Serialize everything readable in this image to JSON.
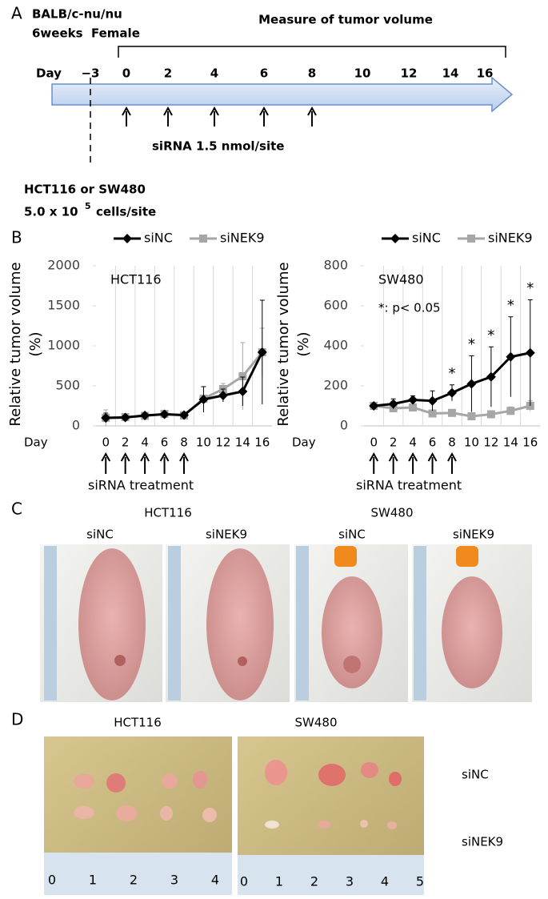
{
  "panel_a": {
    "label": "A",
    "strain": "BALB/c-nu/nu",
    "age_sex": "6weeks  Female",
    "measure": "Measure of tumor volume",
    "day_label": "Day",
    "days": [
      "−3",
      "0",
      "2",
      "4",
      "6",
      "8",
      "10",
      "12",
      "14",
      "16"
    ],
    "sirna": "siRNA 1.5 nmol/site",
    "cells": "HCT116 or SW480",
    "dose": "5.0 x 10",
    "dose_exp": "5",
    "dose_unit": "cells/site"
  },
  "panel_b_label": "B",
  "chart_data": [
    {
      "type": "line",
      "title": "HCT116",
      "ylabel": [
        "Relative tumor volume",
        "(%)"
      ],
      "x_prefix": "Day",
      "categories": [
        "0",
        "2",
        "4",
        "6",
        "8",
        "10",
        "12",
        "14",
        "16"
      ],
      "ylim": [
        0,
        2000
      ],
      "yticks": [
        0,
        500,
        1000,
        1500,
        2000
      ],
      "grid": "x",
      "series": [
        {
          "name": "siNC",
          "color": "#000000",
          "marker": "diamond",
          "values": [
            100,
            105,
            130,
            145,
            135,
            330,
            380,
            430,
            920
          ],
          "errors": [
            60,
            30,
            30,
            30,
            30,
            160,
            80,
            180,
            650
          ]
        },
        {
          "name": "siNEK9",
          "color": "#a6a6a6",
          "marker": "square",
          "values": [
            100,
            110,
            125,
            150,
            130,
            340,
            460,
            620,
            920
          ],
          "errors": [
            100,
            20,
            20,
            20,
            20,
            40,
            70,
            420,
            300
          ]
        }
      ],
      "treatment_label": "siRNA treatment"
    },
    {
      "type": "line",
      "title": "SW480",
      "ylabel": [
        "Relative tumor volume",
        "(%)"
      ],
      "x_prefix": "Day",
      "categories": [
        "0",
        "2",
        "4",
        "6",
        "8",
        "10",
        "12",
        "14",
        "16"
      ],
      "ylim": [
        0,
        800
      ],
      "yticks": [
        0,
        200,
        400,
        600,
        800
      ],
      "grid": "x",
      "note": "*: p< 0.05",
      "annotations": [
        {
          "x": "8",
          "text": "*"
        },
        {
          "x": "10",
          "text": "*"
        },
        {
          "x": "12",
          "text": "*"
        },
        {
          "x": "14",
          "text": "*"
        },
        {
          "x": "16",
          "text": "*"
        }
      ],
      "series": [
        {
          "name": "siNC",
          "color": "#000000",
          "marker": "diamond",
          "values": [
            100,
            110,
            130,
            125,
            165,
            210,
            245,
            345,
            365
          ],
          "errors": [
            10,
            25,
            20,
            50,
            40,
            140,
            150,
            200,
            265
          ]
        },
        {
          "name": "siNEK9",
          "color": "#a6a6a6",
          "marker": "square",
          "values": [
            100,
            88,
            92,
            62,
            65,
            48,
            58,
            75,
            100
          ],
          "errors": [
            15,
            20,
            15,
            15,
            15,
            10,
            10,
            20,
            25
          ]
        }
      ],
      "treatment_label": "siRNA treatment"
    }
  ],
  "panel_c": {
    "label": "C",
    "groups": [
      "HCT116",
      "SW480"
    ],
    "conditions": [
      "siNC",
      "siNEK9",
      "siNC",
      "siNEK9"
    ]
  },
  "panel_d": {
    "label": "D",
    "groups": [
      "HCT116",
      "SW480"
    ],
    "rows": [
      "siNC",
      "siNEK9"
    ],
    "ruler_left": [
      "0",
      "1",
      "2",
      "3",
      "4"
    ],
    "ruler_right": [
      "0",
      "1",
      "2",
      "3",
      "4",
      "5"
    ]
  }
}
